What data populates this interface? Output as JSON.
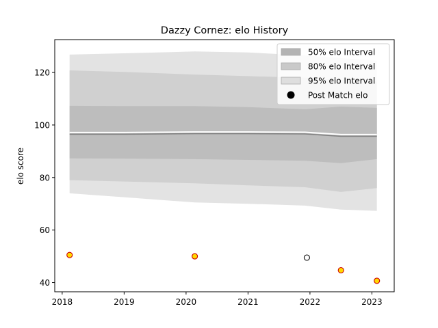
{
  "chart_data": {
    "type": "area",
    "title": "Dazzy Cornez: elo History",
    "xlabel": "",
    "ylabel": "elo score",
    "xlim": [
      2017.88,
      2023.36
    ],
    "ylim": [
      36.5,
      132.5
    ],
    "x_ticks": [
      2018,
      2019,
      2020,
      2021,
      2022,
      2023
    ],
    "y_ticks": [
      40,
      60,
      80,
      100,
      120
    ],
    "grid": false,
    "legend_position": "top-right",
    "x": [
      2018.12,
      2019.0,
      2020.14,
      2021.0,
      2021.92,
      2022.5,
      2023.08
    ],
    "bands": [
      {
        "name": "95% elo Interval",
        "color": "#e3e3e3",
        "upper": [
          126.8,
          127.3,
          128.0,
          127.6,
          126.5,
          125.5,
          124.5
        ],
        "lower": [
          74.0,
          72.5,
          70.5,
          70.0,
          69.3,
          67.8,
          67.3
        ]
      },
      {
        "name": "80% elo Interval",
        "color": "#d0d0d0",
        "upper": [
          120.8,
          120.2,
          119.2,
          118.6,
          118.0,
          117.2,
          116.5
        ],
        "lower": [
          79.0,
          78.5,
          77.8,
          77.0,
          76.3,
          74.5,
          76.0
        ]
      },
      {
        "name": "50% elo Interval",
        "color": "#bdbdbd",
        "upper": [
          107.3,
          107.2,
          107.2,
          106.8,
          106.0,
          107.0,
          106.5
        ],
        "lower": [
          87.3,
          87.2,
          87.0,
          86.7,
          86.4,
          85.5,
          87.0
        ]
      }
    ],
    "mean_line": {
      "color": "#808080",
      "values": [
        96.5,
        96.5,
        96.7,
        96.7,
        96.6,
        95.7,
        95.7
      ]
    },
    "points": {
      "name": "Post Match elo",
      "values": [
        {
          "x": 2018.12,
          "y": 50.5,
          "fill": "#ffd700",
          "edge": "#cc0000"
        },
        {
          "x": 2020.14,
          "y": 50.0,
          "fill": "#ffd700",
          "edge": "#cc0000"
        },
        {
          "x": 2021.95,
          "y": 49.5,
          "fill": "#ffffff",
          "edge": "#000000"
        },
        {
          "x": 2022.5,
          "y": 44.7,
          "fill": "#ffd700",
          "edge": "#cc0000"
        },
        {
          "x": 2023.08,
          "y": 40.7,
          "fill": "#ffd700",
          "edge": "#cc0000"
        }
      ]
    },
    "legend": [
      {
        "label": "50% elo Interval",
        "swatch": "band",
        "color": "#b3b3b3"
      },
      {
        "label": "80% elo Interval",
        "swatch": "band",
        "color": "#c9c9c9"
      },
      {
        "label": "95% elo Interval",
        "swatch": "band",
        "color": "#dedede"
      },
      {
        "label": "Post Match elo",
        "swatch": "dot",
        "color": "#000000"
      }
    ]
  }
}
